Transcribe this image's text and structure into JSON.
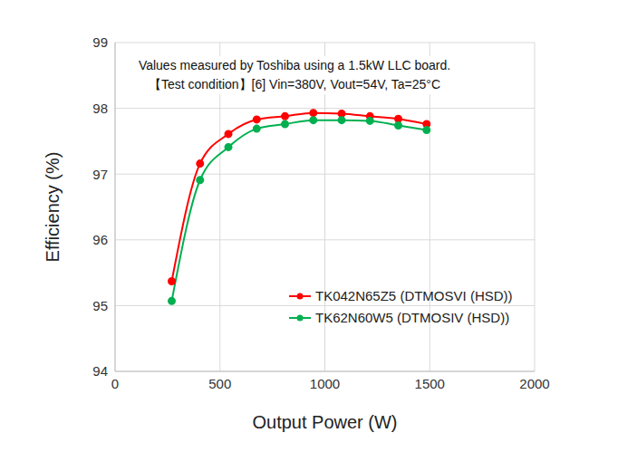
{
  "chart_data": {
    "type": "line",
    "title": "Values measured by Toshiba using a 1.5kW LLC board.",
    "subtitle": "【Test condition】[6] Vin=380V, Vout=54V, Ta=25°C",
    "x_label": "Output Power (W)",
    "y_label": "Efficiency (%)",
    "x": [
      270,
      405,
      540,
      675,
      810,
      945,
      1080,
      1215,
      1350,
      1485
    ],
    "series": [
      {
        "name": "TK042N65Z5 (DTMOSVI (HSD))",
        "color": "#ff0000",
        "marker": "circle",
        "values": [
          95.37,
          97.16,
          97.61,
          97.83,
          97.88,
          97.93,
          97.92,
          97.88,
          97.84,
          97.76
        ]
      },
      {
        "name": "TK62N60W5 (DTMOSIV (HSD))",
        "color": "#00b050",
        "marker": "circle",
        "values": [
          95.07,
          96.91,
          97.41,
          97.69,
          97.76,
          97.82,
          97.82,
          97.81,
          97.74,
          97.67
        ]
      }
    ],
    "xlim": [
      0,
      2000
    ],
    "xticks": [
      0,
      500,
      1000,
      1500,
      2000
    ],
    "ylim": [
      94,
      99
    ],
    "yticks": [
      94,
      95,
      96,
      97,
      98,
      99
    ],
    "grid": true,
    "legend": "lower right"
  }
}
